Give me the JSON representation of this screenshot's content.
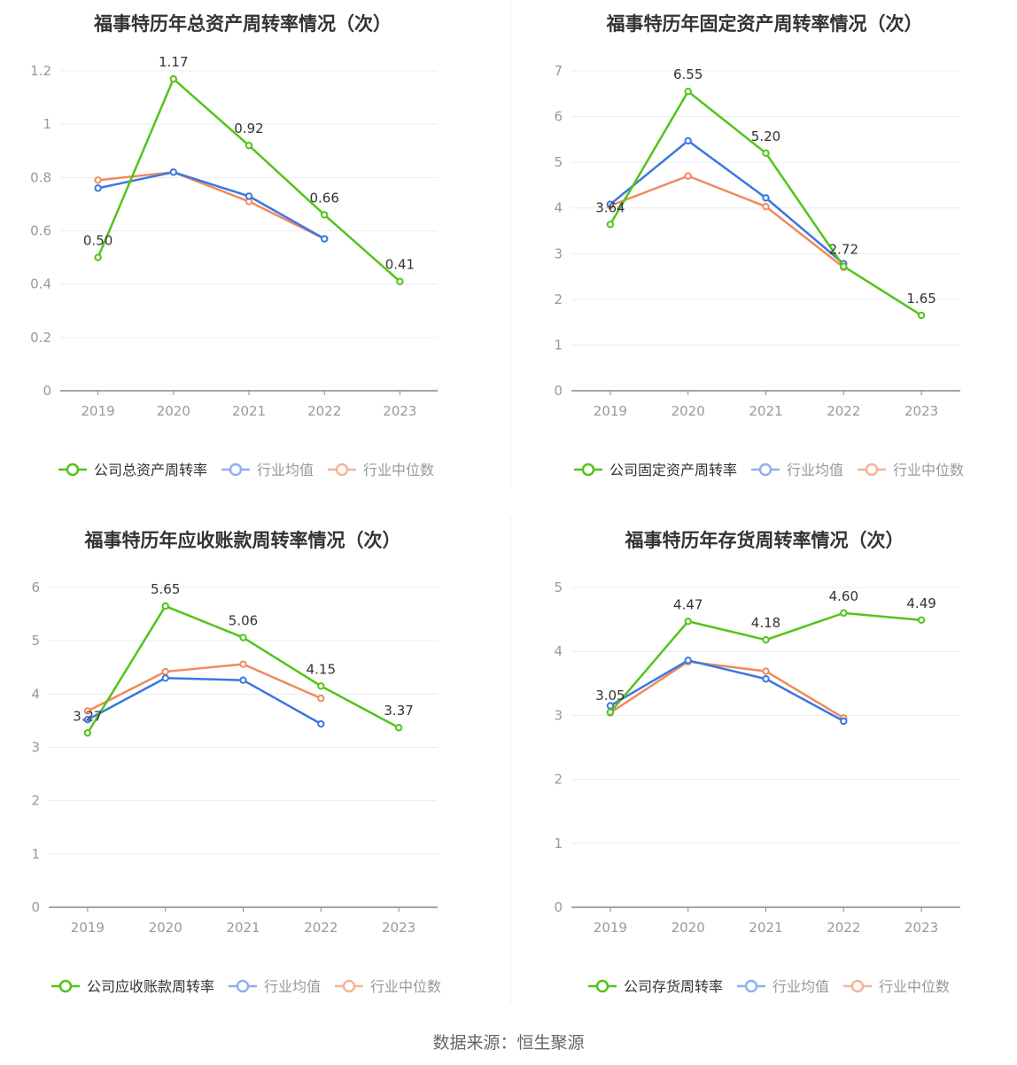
{
  "colors": {
    "company": "#52c41a",
    "avg": "#3a78e0",
    "median": "#f08a5d",
    "legend_avg": "#8fb1ec",
    "legend_median": "#f5b497",
    "grid": "#e8ecf4",
    "axis": "#888888",
    "tick_text": "#999999",
    "title_text": "#333333"
  },
  "chart_data": [
    {
      "type": "line",
      "title": "福事特历年总资产周转率情况（次）",
      "categories": [
        "2019",
        "2020",
        "2021",
        "2022",
        "2023"
      ],
      "ylim": [
        0,
        1.2
      ],
      "yticks": [
        0,
        0.2,
        0.4,
        0.6,
        0.8,
        1,
        1.2
      ],
      "ytick_labels": [
        "0",
        "0.2",
        "0.4",
        "0.6",
        "0.8",
        "1",
        "1.2"
      ],
      "legend_position": "bottom",
      "series": [
        {
          "name": "公司总资产周转率",
          "values": [
            0.5,
            1.17,
            0.92,
            0.66,
            0.41
          ],
          "labels": [
            "0.50",
            "1.17",
            "0.92",
            "0.66",
            "0.41"
          ]
        },
        {
          "name": "行业均值",
          "values": [
            0.76,
            0.82,
            0.73,
            0.57,
            null
          ]
        },
        {
          "name": "行业中位数",
          "values": [
            0.79,
            0.82,
            0.71,
            0.57,
            null
          ]
        }
      ]
    },
    {
      "type": "line",
      "title": "福事特历年固定资产周转率情况（次）",
      "categories": [
        "2019",
        "2020",
        "2021",
        "2022",
        "2023"
      ],
      "ylim": [
        0,
        7
      ],
      "yticks": [
        0,
        1,
        2,
        3,
        4,
        5,
        6,
        7
      ],
      "ytick_labels": [
        "0",
        "1",
        "2",
        "3",
        "4",
        "5",
        "6",
        "7"
      ],
      "legend_position": "bottom",
      "series": [
        {
          "name": "公司固定资产周转率",
          "values": [
            3.64,
            6.55,
            5.2,
            2.72,
            1.65
          ],
          "labels": [
            "3.64",
            "6.55",
            "5.20",
            "2.72",
            "1.65"
          ]
        },
        {
          "name": "行业均值",
          "values": [
            4.08,
            5.47,
            4.22,
            2.78,
            null
          ]
        },
        {
          "name": "行业中位数",
          "values": [
            4.05,
            4.7,
            4.03,
            2.7,
            null
          ]
        }
      ]
    },
    {
      "type": "line",
      "title": "福事特历年应收账款周转率情况（次）",
      "categories": [
        "2019",
        "2020",
        "2021",
        "2022",
        "2023"
      ],
      "ylim": [
        0,
        6
      ],
      "yticks": [
        0,
        1,
        2,
        3,
        4,
        5,
        6
      ],
      "ytick_labels": [
        "0",
        "1",
        "2",
        "3",
        "4",
        "5",
        "6"
      ],
      "legend_position": "bottom",
      "series": [
        {
          "name": "公司应收账款周转率",
          "values": [
            3.27,
            5.65,
            5.06,
            4.15,
            3.37
          ],
          "labels": [
            "3.27",
            "5.65",
            "5.06",
            "4.15",
            "3.37"
          ]
        },
        {
          "name": "行业均值",
          "values": [
            3.52,
            4.3,
            4.26,
            3.44,
            null
          ]
        },
        {
          "name": "行业中位数",
          "values": [
            3.68,
            4.42,
            4.56,
            3.92,
            null
          ]
        }
      ]
    },
    {
      "type": "line",
      "title": "福事特历年存货周转率情况（次）",
      "categories": [
        "2019",
        "2020",
        "2021",
        "2022",
        "2023"
      ],
      "ylim": [
        0,
        5
      ],
      "yticks": [
        0,
        1,
        2,
        3,
        4,
        5
      ],
      "ytick_labels": [
        "0",
        "1",
        "2",
        "3",
        "4",
        "5"
      ],
      "legend_position": "bottom",
      "series": [
        {
          "name": "公司存货周转率",
          "values": [
            3.05,
            4.47,
            4.18,
            4.6,
            4.49
          ],
          "labels": [
            "3.05",
            "4.47",
            "4.18",
            "4.60",
            "4.49"
          ]
        },
        {
          "name": "行业均值",
          "values": [
            3.15,
            3.86,
            3.57,
            2.91,
            null
          ]
        },
        {
          "name": "行业中位数",
          "values": [
            3.04,
            3.84,
            3.69,
            2.96,
            null
          ]
        }
      ]
    }
  ],
  "footer": {
    "source": "数据来源：恒生聚源"
  }
}
